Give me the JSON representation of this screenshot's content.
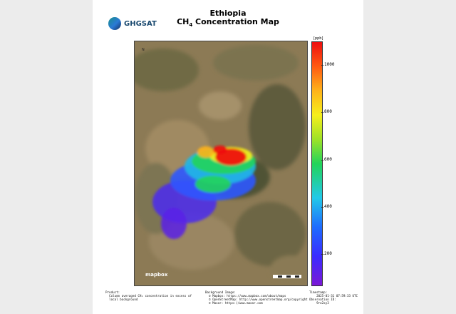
{
  "header": {
    "brand": "GHGSAT",
    "title_line1": "Ethiopia",
    "title_line2_prefix": "CH",
    "title_line2_sub": "4",
    "title_line2_suffix": " Concentration Map"
  },
  "map": {
    "attribution_logo": "mapbox",
    "north_label": "N"
  },
  "colorbar": {
    "unit": "[ppb]",
    "ticks": [
      {
        "value": 200,
        "label": "200"
      },
      {
        "value": 400,
        "label": "400"
      },
      {
        "value": 600,
        "label": "600"
      },
      {
        "value": 800,
        "label": "800"
      },
      {
        "value": 1000,
        "label": "1000"
      }
    ],
    "range": [
      70,
      1100
    ],
    "colors": [
      "#7b18d6",
      "#3a2cff",
      "#1e6cff",
      "#22c9e8",
      "#22d45a",
      "#9ee227",
      "#f6ef1b",
      "#ffb31a",
      "#ff5a12",
      "#ee0f0f"
    ]
  },
  "footer": {
    "product_heading": "Product:",
    "product_line1": "  Column averaged CH₄ concentration in excess of",
    "product_line2": "  local background",
    "bg_heading": "Background Image:",
    "bg_line1": "  © Mapbox: https://www.mapbox.com/about/maps",
    "bg_line2": "  © OpenStreetMap: http://www.openstreetmap.org/copyright",
    "bg_line3": "  © Maxar: https://www.maxar.com",
    "ts_heading": "Timestamp:",
    "ts_value": "    2025-01-31 07:59:33 UTC",
    "obs_heading": "Observation ID:",
    "obs_value": "    9ro2xy3"
  }
}
